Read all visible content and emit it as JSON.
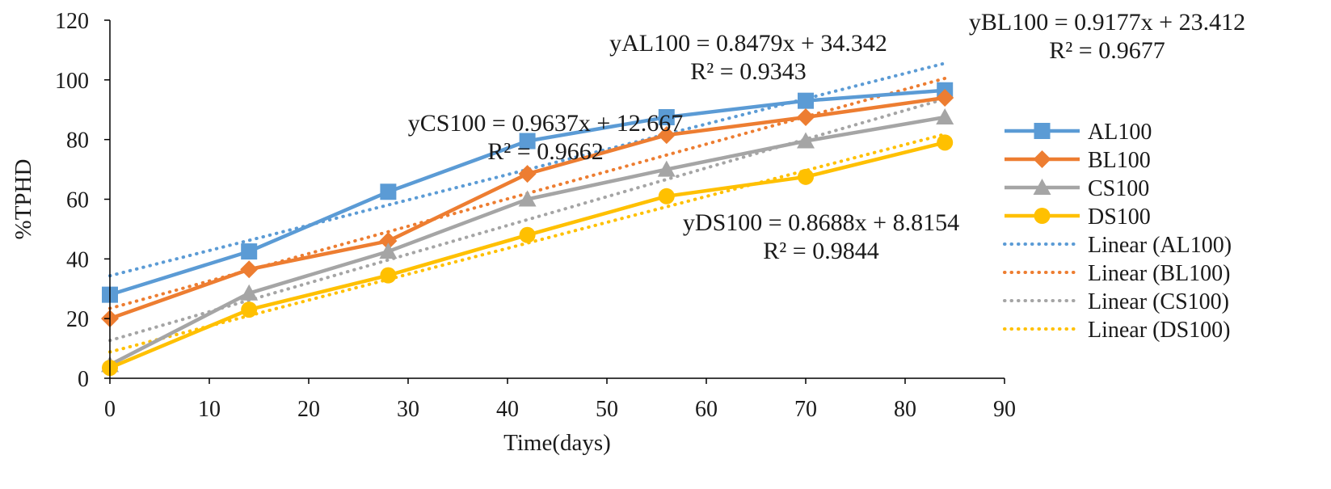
{
  "chart_data": {
    "type": "line",
    "xlabel": "Time(days)",
    "ylabel": "%TPHD",
    "xlim": [
      0,
      90
    ],
    "ylim": [
      0,
      120
    ],
    "x_ticks": [
      0,
      10,
      20,
      30,
      40,
      50,
      60,
      70,
      80,
      90
    ],
    "y_ticks": [
      0,
      20,
      40,
      60,
      80,
      100,
      120
    ],
    "grid": false,
    "legend_position": "right",
    "x": [
      0,
      14,
      28,
      42,
      56,
      70,
      84
    ],
    "series": [
      {
        "name": "AL100",
        "color": "#5b9bd5",
        "marker": "square",
        "values": [
          28,
          42.5,
          62.5,
          79.5,
          87.5,
          93,
          96.5
        ]
      },
      {
        "name": "BL100",
        "color": "#ed7d31",
        "marker": "diamond",
        "values": [
          20,
          36.5,
          46,
          68.5,
          81.5,
          87.5,
          94
        ]
      },
      {
        "name": "CS100",
        "color": "#a5a5a5",
        "marker": "triangle",
        "values": [
          4.5,
          28.5,
          42.5,
          60,
          70,
          79.5,
          87.5
        ]
      },
      {
        "name": "DS100",
        "color": "#ffc000",
        "marker": "circle",
        "values": [
          3.5,
          23,
          34.5,
          48,
          61,
          67.5,
          79
        ]
      }
    ],
    "trendlines": [
      {
        "name": "Linear (AL100)",
        "color": "#5b9bd5",
        "slope": 0.8479,
        "intercept": 34.342
      },
      {
        "name": "Linear (BL100)",
        "color": "#ed7d31",
        "slope": 0.9177,
        "intercept": 23.412
      },
      {
        "name": "Linear (CS100)",
        "color": "#a5a5a5",
        "slope": 0.9637,
        "intercept": 12.667
      },
      {
        "name": "Linear (DS100)",
        "color": "#ffc000",
        "slope": 0.8688,
        "intercept": 8.8154
      }
    ],
    "annotations": [
      {
        "series": "AL100",
        "equation": "yAL100 = 0.8479x + 34.342",
        "r2": "R² = 0.9343"
      },
      {
        "series": "BL100",
        "equation": "yBL100 = 0.9177x + 23.412",
        "r2": "R² = 0.9677"
      },
      {
        "series": "CS100",
        "equation": "yCS100 = 0.9637x + 12.667",
        "r2": "R² = 0.9662"
      },
      {
        "series": "DS100",
        "equation": "yDS100 = 0.8688x + 8.8154",
        "r2": "R² = 0.9844"
      }
    ]
  }
}
